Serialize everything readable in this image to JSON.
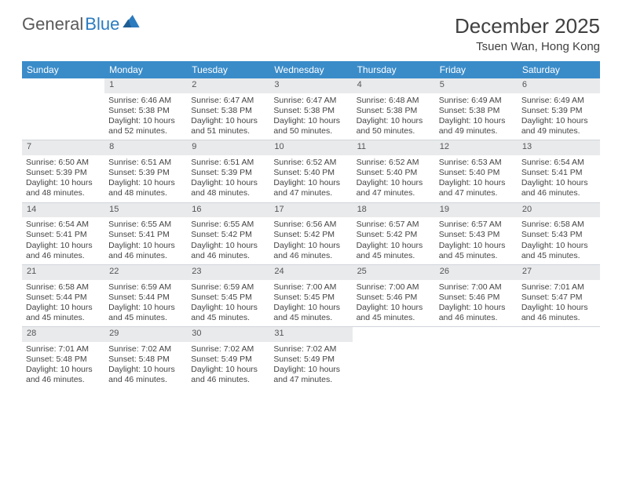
{
  "logo": {
    "part1": "General",
    "part2": "Blue"
  },
  "title": "December 2025",
  "location": "Tsuen Wan, Hong Kong",
  "colors": {
    "header_bg": "#3a8cc9",
    "header_fg": "#ffffff",
    "daynum_bg": "#e8eaec",
    "text": "#444444",
    "page_bg": "#ffffff",
    "rule": "#d0d5da"
  },
  "weekdays": [
    "Sunday",
    "Monday",
    "Tuesday",
    "Wednesday",
    "Thursday",
    "Friday",
    "Saturday"
  ],
  "weeks": [
    [
      null,
      {
        "n": "1",
        "sr": "6:46 AM",
        "ss": "5:38 PM",
        "dl": "10 hours and 52 minutes."
      },
      {
        "n": "2",
        "sr": "6:47 AM",
        "ss": "5:38 PM",
        "dl": "10 hours and 51 minutes."
      },
      {
        "n": "3",
        "sr": "6:47 AM",
        "ss": "5:38 PM",
        "dl": "10 hours and 50 minutes."
      },
      {
        "n": "4",
        "sr": "6:48 AM",
        "ss": "5:38 PM",
        "dl": "10 hours and 50 minutes."
      },
      {
        "n": "5",
        "sr": "6:49 AM",
        "ss": "5:38 PM",
        "dl": "10 hours and 49 minutes."
      },
      {
        "n": "6",
        "sr": "6:49 AM",
        "ss": "5:39 PM",
        "dl": "10 hours and 49 minutes."
      }
    ],
    [
      {
        "n": "7",
        "sr": "6:50 AM",
        "ss": "5:39 PM",
        "dl": "10 hours and 48 minutes."
      },
      {
        "n": "8",
        "sr": "6:51 AM",
        "ss": "5:39 PM",
        "dl": "10 hours and 48 minutes."
      },
      {
        "n": "9",
        "sr": "6:51 AM",
        "ss": "5:39 PM",
        "dl": "10 hours and 48 minutes."
      },
      {
        "n": "10",
        "sr": "6:52 AM",
        "ss": "5:40 PM",
        "dl": "10 hours and 47 minutes."
      },
      {
        "n": "11",
        "sr": "6:52 AM",
        "ss": "5:40 PM",
        "dl": "10 hours and 47 minutes."
      },
      {
        "n": "12",
        "sr": "6:53 AM",
        "ss": "5:40 PM",
        "dl": "10 hours and 47 minutes."
      },
      {
        "n": "13",
        "sr": "6:54 AM",
        "ss": "5:41 PM",
        "dl": "10 hours and 46 minutes."
      }
    ],
    [
      {
        "n": "14",
        "sr": "6:54 AM",
        "ss": "5:41 PM",
        "dl": "10 hours and 46 minutes."
      },
      {
        "n": "15",
        "sr": "6:55 AM",
        "ss": "5:41 PM",
        "dl": "10 hours and 46 minutes."
      },
      {
        "n": "16",
        "sr": "6:55 AM",
        "ss": "5:42 PM",
        "dl": "10 hours and 46 minutes."
      },
      {
        "n": "17",
        "sr": "6:56 AM",
        "ss": "5:42 PM",
        "dl": "10 hours and 46 minutes."
      },
      {
        "n": "18",
        "sr": "6:57 AM",
        "ss": "5:42 PM",
        "dl": "10 hours and 45 minutes."
      },
      {
        "n": "19",
        "sr": "6:57 AM",
        "ss": "5:43 PM",
        "dl": "10 hours and 45 minutes."
      },
      {
        "n": "20",
        "sr": "6:58 AM",
        "ss": "5:43 PM",
        "dl": "10 hours and 45 minutes."
      }
    ],
    [
      {
        "n": "21",
        "sr": "6:58 AM",
        "ss": "5:44 PM",
        "dl": "10 hours and 45 minutes."
      },
      {
        "n": "22",
        "sr": "6:59 AM",
        "ss": "5:44 PM",
        "dl": "10 hours and 45 minutes."
      },
      {
        "n": "23",
        "sr": "6:59 AM",
        "ss": "5:45 PM",
        "dl": "10 hours and 45 minutes."
      },
      {
        "n": "24",
        "sr": "7:00 AM",
        "ss": "5:45 PM",
        "dl": "10 hours and 45 minutes."
      },
      {
        "n": "25",
        "sr": "7:00 AM",
        "ss": "5:46 PM",
        "dl": "10 hours and 45 minutes."
      },
      {
        "n": "26",
        "sr": "7:00 AM",
        "ss": "5:46 PM",
        "dl": "10 hours and 46 minutes."
      },
      {
        "n": "27",
        "sr": "7:01 AM",
        "ss": "5:47 PM",
        "dl": "10 hours and 46 minutes."
      }
    ],
    [
      {
        "n": "28",
        "sr": "7:01 AM",
        "ss": "5:48 PM",
        "dl": "10 hours and 46 minutes."
      },
      {
        "n": "29",
        "sr": "7:02 AM",
        "ss": "5:48 PM",
        "dl": "10 hours and 46 minutes."
      },
      {
        "n": "30",
        "sr": "7:02 AM",
        "ss": "5:49 PM",
        "dl": "10 hours and 46 minutes."
      },
      {
        "n": "31",
        "sr": "7:02 AM",
        "ss": "5:49 PM",
        "dl": "10 hours and 47 minutes."
      },
      null,
      null,
      null
    ]
  ],
  "labels": {
    "sunrise": "Sunrise:",
    "sunset": "Sunset:",
    "daylight": "Daylight:"
  }
}
